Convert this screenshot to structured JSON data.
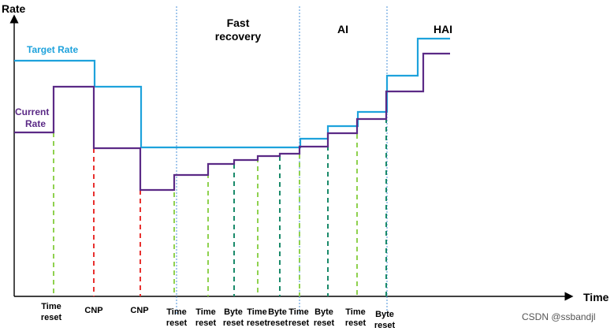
{
  "axes": {
    "y_title": "Rate",
    "x_title": "Time"
  },
  "series": {
    "target": {
      "label": "Target Rate",
      "color": "#1ea2dc"
    },
    "current": {
      "label_line1": "Current",
      "label_line2": "Rate",
      "color": "#5b2a86"
    }
  },
  "regions": {
    "fast_recovery_line1": "Fast",
    "fast_recovery_line2": "recovery",
    "ai": "AI",
    "hai": "HAI"
  },
  "events": [
    {
      "id": "time-reset-1",
      "line1": "Time",
      "line2": "reset",
      "kind": "time_reset"
    },
    {
      "id": "cnp-1",
      "line1": "CNP",
      "line2": "",
      "kind": "cnp"
    },
    {
      "id": "cnp-2",
      "line1": "CNP",
      "line2": "",
      "kind": "cnp"
    },
    {
      "id": "time-reset-2",
      "line1": "Time",
      "line2": "reset",
      "kind": "time_reset"
    },
    {
      "id": "time-reset-3",
      "line1": "Time",
      "line2": "reset",
      "kind": "time_reset"
    },
    {
      "id": "byte-reset-1",
      "line1": "Byte",
      "line2": "reset",
      "kind": "byte_reset"
    },
    {
      "id": "time-reset-4",
      "line1": "Time",
      "line2": "reset",
      "kind": "time_reset"
    },
    {
      "id": "byte-reset-2",
      "line1": "Byte",
      "line2": "reset",
      "kind": "byte_reset"
    },
    {
      "id": "time-reset-5",
      "line1": "Time",
      "line2": "reset",
      "kind": "time_reset"
    },
    {
      "id": "byte-reset-3",
      "line1": "Byte",
      "line2": "reset",
      "kind": "byte_reset"
    },
    {
      "id": "time-reset-6",
      "line1": "Time",
      "line2": "reset",
      "kind": "time_reset"
    },
    {
      "id": "byte-reset-4",
      "line1": "Byte",
      "line2": "reset",
      "kind": "byte_reset"
    }
  ],
  "event_colors": {
    "time_reset": "#8fd14f",
    "cnp": "#e8312f",
    "byte_reset": "#1a8a6a",
    "phase_divider": "#4a90d9"
  },
  "watermark": "CSDN @ssbandjl"
}
